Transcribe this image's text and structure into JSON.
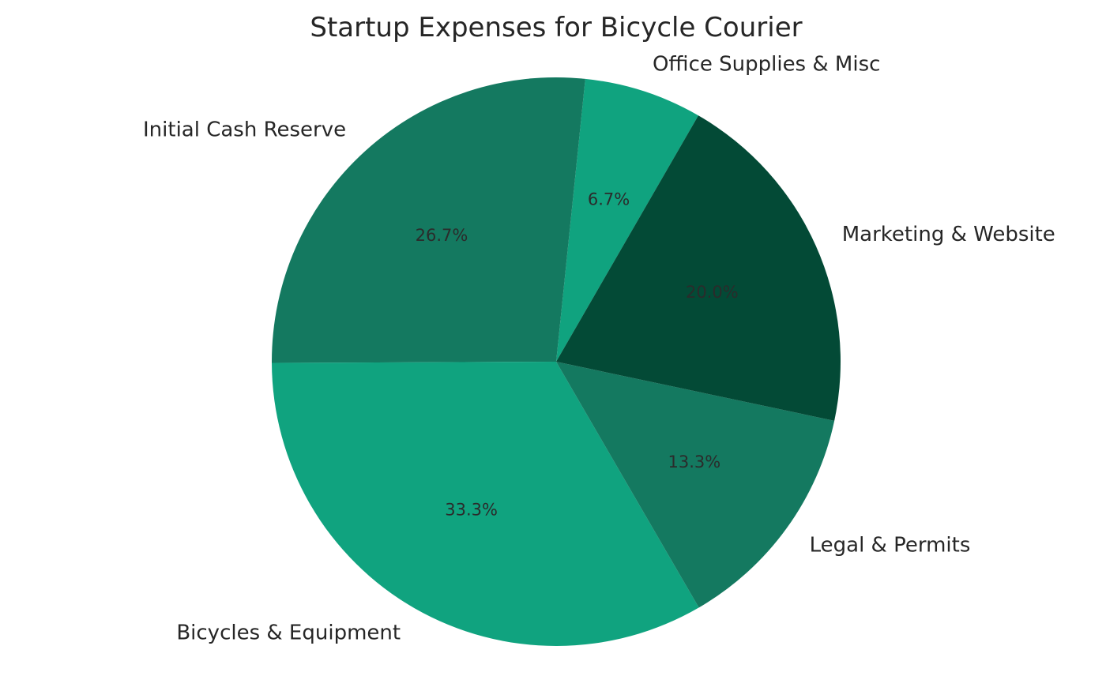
{
  "chart_data": {
    "type": "pie",
    "title": "Startup Expenses for Bicycle Courier",
    "start_angle_deg": 60,
    "direction": "counterclockwise",
    "slices": [
      {
        "label": "Office Supplies & Misc",
        "value": 6.7,
        "pct_label": "6.7%",
        "color": "#10a37f"
      },
      {
        "label": "Initial Cash Reserve",
        "value": 26.7,
        "pct_label": "26.7%",
        "color": "#147960"
      },
      {
        "label": "Bicycles & Equipment",
        "value": 33.3,
        "pct_label": "33.3%",
        "color": "#10a37f"
      },
      {
        "label": "Legal & Permits",
        "value": 13.3,
        "pct_label": "13.3%",
        "color": "#147960"
      },
      {
        "label": "Marketing & Website",
        "value": 20.0,
        "pct_label": "20.0%",
        "color": "#034a36"
      }
    ]
  }
}
